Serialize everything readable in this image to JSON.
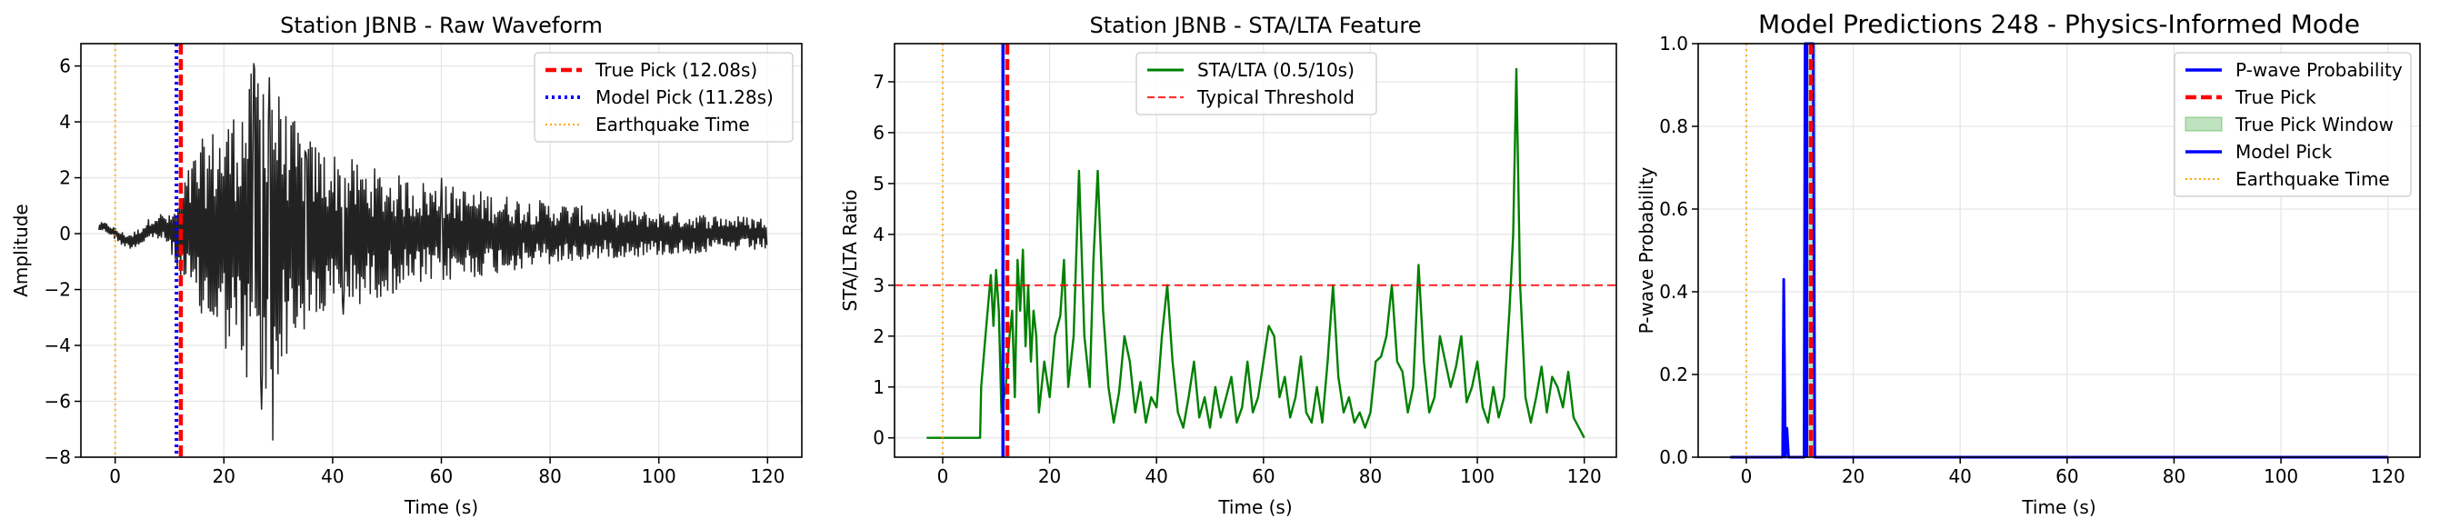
{
  "chart_data": [
    {
      "type": "line",
      "title": "Station JBNB - Raw Waveform",
      "xlabel": "Time (s)",
      "ylabel": "Amplitude",
      "xlim": [
        -6.3,
        126.3
      ],
      "ylim": [
        -8.0,
        6.8
      ],
      "xticks": [
        0,
        20,
        40,
        60,
        80,
        100,
        120
      ],
      "yticks": [
        -8,
        -6,
        -4,
        -2,
        0,
        2,
        4,
        6
      ],
      "xtick_labels": [
        "0",
        "20",
        "40",
        "60",
        "80",
        "100",
        "120"
      ],
      "ytick_labels": [
        "−8",
        "−6",
        "−4",
        "−2",
        "0",
        "2",
        "4",
        "6"
      ],
      "grid": true,
      "legend_position": "upper right",
      "series": [
        {
          "name": "",
          "kind": "waveform",
          "color": "#222222",
          "x_start": -3,
          "x_end": 120,
          "envelope": [
            [
              -3,
              0.15
            ],
            [
              5,
              0.35
            ],
            [
              10,
              0.6
            ],
            [
              12,
              1.6
            ],
            [
              15,
              3.2
            ],
            [
              18,
              3.8
            ],
            [
              22,
              4.5
            ],
            [
              25,
              5.8
            ],
            [
              28,
              6.8
            ],
            [
              31,
              4.5
            ],
            [
              36,
              3.4
            ],
            [
              42,
              2.8
            ],
            [
              50,
              2.2
            ],
            [
              60,
              1.8
            ],
            [
              75,
              1.3
            ],
            [
              90,
              0.9
            ],
            [
              105,
              0.75
            ],
            [
              120,
              0.6
            ]
          ],
          "peaks": [
            [
              25.5,
              6.1
            ],
            [
              28.3,
              5.6
            ],
            [
              29.0,
              -7.4
            ],
            [
              27.0,
              -6.3
            ],
            [
              21.5,
              3.6
            ],
            [
              30.5,
              4.1
            ],
            [
              35,
              2.9
            ],
            [
              42,
              -2.9
            ],
            [
              41,
              2.3
            ],
            [
              60,
              2.0
            ]
          ]
        },
        {
          "name": "True Pick (12.08s)",
          "kind": "vline",
          "x": 12.08,
          "color": "#ff0000",
          "style": "dashed"
        },
        {
          "name": "Model Pick (11.28s)",
          "kind": "vline",
          "x": 11.28,
          "color": "#0000ff",
          "style": "dotted"
        },
        {
          "name": "Earthquake Time",
          "kind": "vline",
          "x": 0,
          "color": "#ffa500",
          "style": "dotted"
        }
      ]
    },
    {
      "type": "line",
      "title": "Station JBNB - STA/LTA Feature",
      "xlabel": "Time (s)",
      "ylabel": "STA/LTA Ratio",
      "xlim": [
        -9.0,
        126.0
      ],
      "ylim": [
        -0.38,
        7.75
      ],
      "xticks": [
        0,
        20,
        40,
        60,
        80,
        100,
        120
      ],
      "yticks": [
        0,
        1,
        2,
        3,
        4,
        5,
        6,
        7
      ],
      "xtick_labels": [
        "0",
        "20",
        "40",
        "60",
        "80",
        "100",
        "120"
      ],
      "ytick_labels": [
        "0",
        "1",
        "2",
        "3",
        "4",
        "5",
        "6",
        "7"
      ],
      "grid": true,
      "legend_position": "upper center",
      "series": [
        {
          "name": "STA/LTA (0.5/10s)",
          "kind": "line",
          "color": "#008000",
          "points": [
            [
              -3,
              0.0
            ],
            [
              7,
              0.0
            ],
            [
              7.2,
              1.0
            ],
            [
              8,
              2.0
            ],
            [
              8.5,
              2.6
            ],
            [
              9,
              3.2
            ],
            [
              9.5,
              2.2
            ],
            [
              10,
              3.3
            ],
            [
              10.5,
              2.5
            ],
            [
              11,
              0.5
            ],
            [
              11.8,
              1.0
            ],
            [
              12.5,
              2.0
            ],
            [
              13,
              2.5
            ],
            [
              13.5,
              0.8
            ],
            [
              14,
              3.5
            ],
            [
              14.5,
              2.5
            ],
            [
              15,
              3.7
            ],
            [
              15.5,
              1.8
            ],
            [
              16,
              3.0
            ],
            [
              16.5,
              1.5
            ],
            [
              17,
              2.5
            ],
            [
              17.5,
              2.0
            ],
            [
              18,
              0.5
            ],
            [
              19,
              1.5
            ],
            [
              20,
              0.8
            ],
            [
              21,
              2.0
            ],
            [
              22,
              2.4
            ],
            [
              22.7,
              3.5
            ],
            [
              23.5,
              1.0
            ],
            [
              24.5,
              2.0
            ],
            [
              25.5,
              5.25
            ],
            [
              26.5,
              2.0
            ],
            [
              27.5,
              1.0
            ],
            [
              28.2,
              3.5
            ],
            [
              29,
              5.25
            ],
            [
              30,
              2.5
            ],
            [
              31,
              1.0
            ],
            [
              32,
              0.3
            ],
            [
              33,
              0.9
            ],
            [
              34,
              2.0
            ],
            [
              35,
              1.5
            ],
            [
              36,
              0.5
            ],
            [
              37,
              1.1
            ],
            [
              38,
              0.3
            ],
            [
              39,
              0.8
            ],
            [
              40,
              0.6
            ],
            [
              41,
              2.0
            ],
            [
              42,
              3.0
            ],
            [
              43,
              1.5
            ],
            [
              44,
              0.5
            ],
            [
              45,
              0.2
            ],
            [
              46,
              0.8
            ],
            [
              47,
              1.5
            ],
            [
              48,
              0.4
            ],
            [
              49,
              0.8
            ],
            [
              50,
              0.2
            ],
            [
              51,
              1.0
            ],
            [
              52,
              0.4
            ],
            [
              53,
              0.8
            ],
            [
              54,
              1.2
            ],
            [
              55,
              0.3
            ],
            [
              56,
              0.6
            ],
            [
              57,
              1.5
            ],
            [
              58,
              0.5
            ],
            [
              59,
              0.8
            ],
            [
              60,
              1.5
            ],
            [
              61,
              2.2
            ],
            [
              62,
              2.0
            ],
            [
              63,
              0.8
            ],
            [
              64,
              1.2
            ],
            [
              65,
              0.4
            ],
            [
              66,
              0.8
            ],
            [
              67,
              1.6
            ],
            [
              68,
              0.5
            ],
            [
              69,
              0.3
            ],
            [
              70,
              1.0
            ],
            [
              71,
              0.3
            ],
            [
              72,
              1.5
            ],
            [
              73,
              3.0
            ],
            [
              74,
              1.2
            ],
            [
              75,
              0.5
            ],
            [
              76,
              0.8
            ],
            [
              77,
              0.3
            ],
            [
              78,
              0.5
            ],
            [
              79,
              0.2
            ],
            [
              80,
              0.5
            ],
            [
              81,
              1.5
            ],
            [
              82,
              1.6
            ],
            [
              83,
              2.0
            ],
            [
              84,
              3.0
            ],
            [
              85,
              1.5
            ],
            [
              86,
              1.3
            ],
            [
              87,
              0.5
            ],
            [
              88,
              1.0
            ],
            [
              89,
              3.4
            ],
            [
              90,
              1.5
            ],
            [
              91,
              0.5
            ],
            [
              92,
              0.8
            ],
            [
              93,
              2.0
            ],
            [
              94,
              1.5
            ],
            [
              95,
              1.0
            ],
            [
              96,
              1.4
            ],
            [
              97,
              2.0
            ],
            [
              98,
              0.7
            ],
            [
              99,
              1.0
            ],
            [
              100,
              1.5
            ],
            [
              101,
              0.6
            ],
            [
              102,
              0.3
            ],
            [
              103,
              1.0
            ],
            [
              104,
              0.4
            ],
            [
              105,
              0.8
            ],
            [
              106,
              2.5
            ],
            [
              106.7,
              4.0
            ],
            [
              107.3,
              7.25
            ],
            [
              108,
              3.0
            ],
            [
              109,
              0.8
            ],
            [
              110,
              0.3
            ],
            [
              111,
              0.8
            ],
            [
              112,
              1.4
            ],
            [
              113,
              0.5
            ],
            [
              114,
              1.2
            ],
            [
              115,
              1.0
            ],
            [
              116,
              0.6
            ],
            [
              117,
              1.3
            ],
            [
              118,
              0.4
            ],
            [
              119,
              0.2
            ],
            [
              120,
              0.0
            ]
          ]
        },
        {
          "name": "Typical Threshold",
          "kind": "hline",
          "y": 3.0,
          "color": "#ff0000",
          "style": "dashed"
        },
        {
          "name": "",
          "kind": "vline",
          "x": 0,
          "color": "#ffa500",
          "style": "dotted"
        },
        {
          "name": "",
          "kind": "vline",
          "x": 11.28,
          "color": "#0000ff",
          "style": "solid"
        },
        {
          "name": "",
          "kind": "vline",
          "x": 12.08,
          "color": "#ff0000",
          "style": "dashed"
        }
      ]
    },
    {
      "type": "line",
      "title": "Model Predictions 248 - Physics-Informed Mode",
      "xlabel": "Time (s)",
      "ylabel": "P-wave Probability",
      "xlim": [
        -9.0,
        126.0
      ],
      "ylim": [
        0.0,
        1.0
      ],
      "xticks": [
        0,
        20,
        40,
        60,
        80,
        100,
        120
      ],
      "yticks": [
        0.0,
        0.2,
        0.4,
        0.6,
        0.8,
        1.0
      ],
      "xtick_labels": [
        "0",
        "20",
        "40",
        "60",
        "80",
        "100",
        "120"
      ],
      "ytick_labels": [
        "0.0",
        "0.2",
        "0.4",
        "0.6",
        "0.8",
        "1.0"
      ],
      "grid": true,
      "legend_position": "upper right",
      "series": [
        {
          "name": "P-wave Probability",
          "kind": "line",
          "color": "#0000ff",
          "points": [
            [
              -3,
              0.0
            ],
            [
              6.8,
              0.0
            ],
            [
              7.0,
              0.43
            ],
            [
              7.3,
              0.0
            ],
            [
              7.6,
              0.07
            ],
            [
              7.9,
              0.0
            ],
            [
              10.8,
              0.0
            ],
            [
              11.0,
              1.0
            ],
            [
              12.5,
              1.0
            ],
            [
              12.8,
              0.0
            ],
            [
              120,
              0.0
            ]
          ]
        },
        {
          "name": "True Pick",
          "kind": "vline",
          "x": 12.08,
          "color": "#ff0000",
          "style": "dashed"
        },
        {
          "name": "True Pick Window",
          "kind": "band",
          "x0": 11.08,
          "x1": 13.08,
          "color": "#2ca02c"
        },
        {
          "name": "Model Pick",
          "kind": "vline",
          "x": 11.28,
          "color": "#0000ff",
          "style": "solid"
        },
        {
          "name": "Earthquake Time",
          "kind": "vline",
          "x": 0,
          "color": "#ffa500",
          "style": "dotted"
        }
      ]
    }
  ]
}
